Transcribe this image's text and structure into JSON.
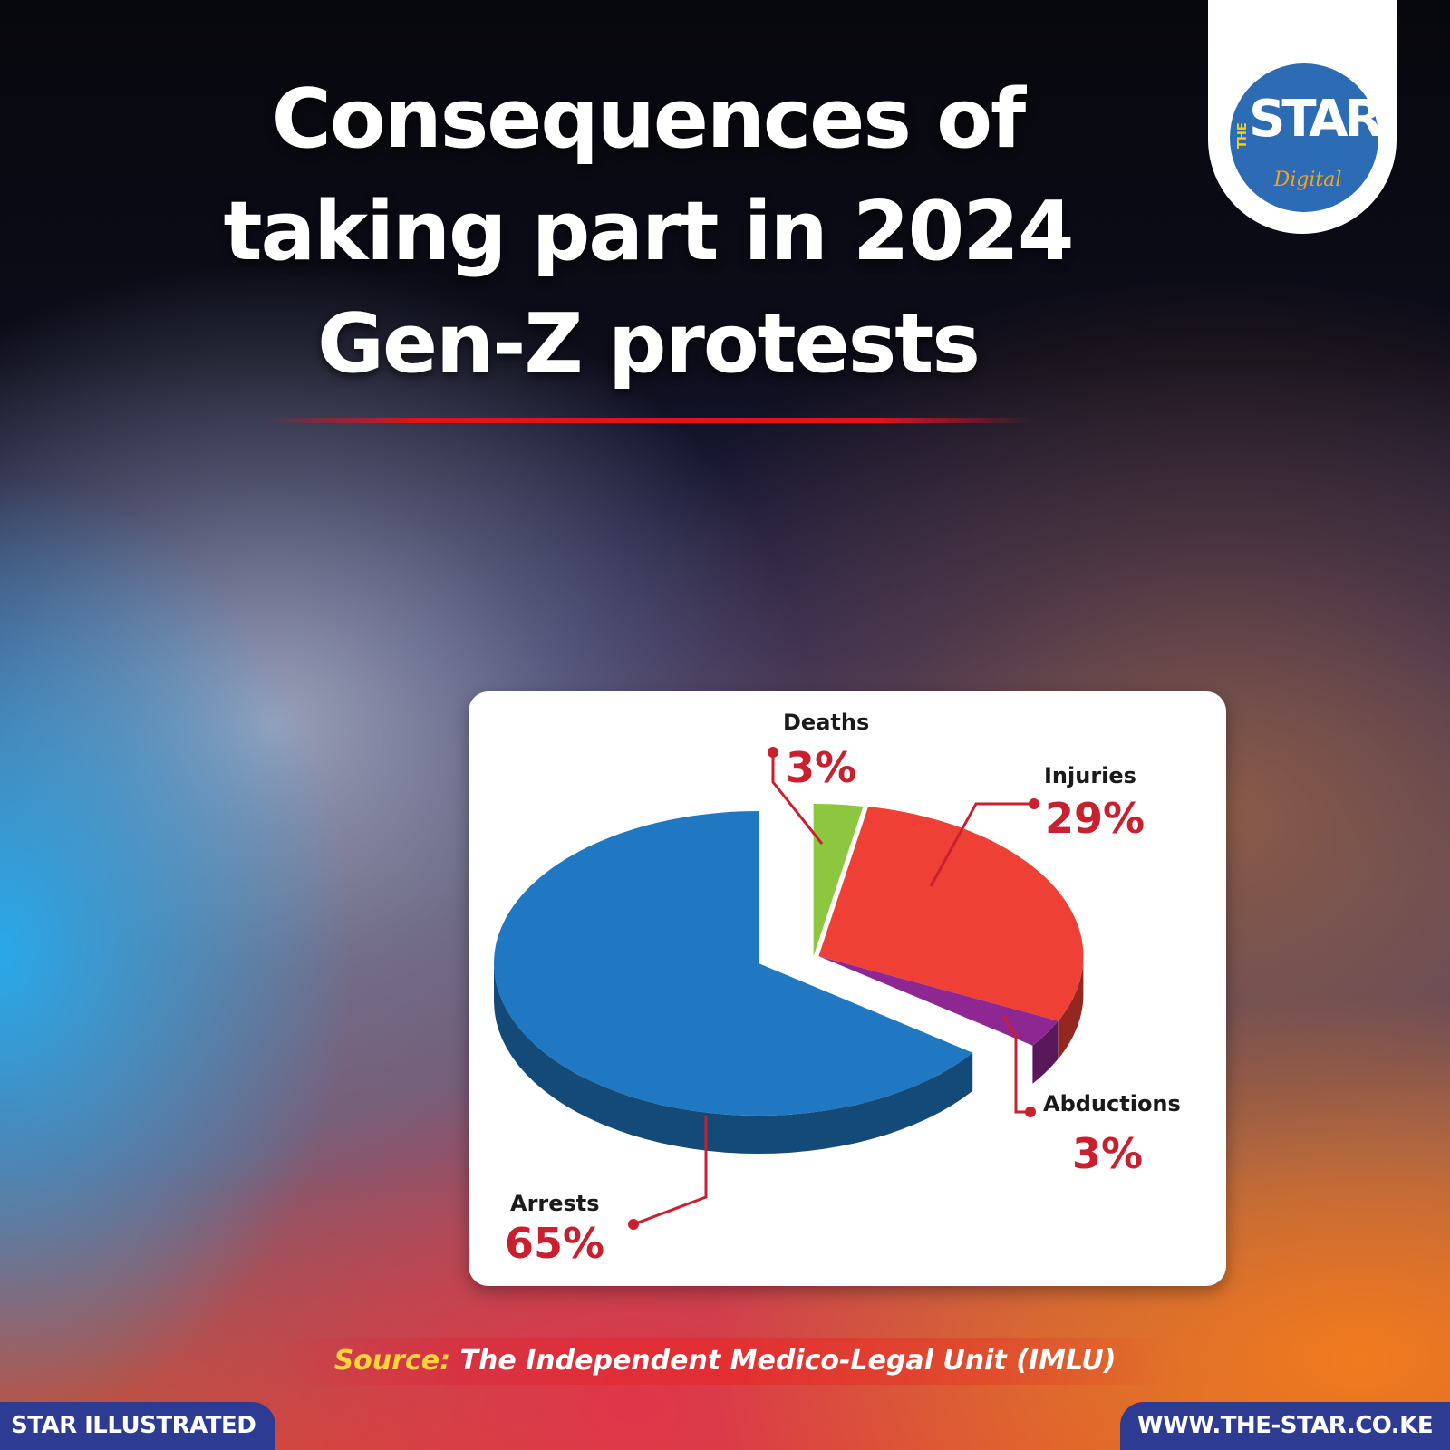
{
  "title_lines": [
    "Consequences of",
    "taking part in 2024",
    "Gen-Z protests"
  ],
  "logo": {
    "the": "THE",
    "star": "STAR",
    "digital": "Digital"
  },
  "source": {
    "label": "Source:",
    "text": "The Independent Medico-Legal Unit (IMLU)"
  },
  "footer": {
    "left": "STAR ILLUSTRATED",
    "right": "WWW.THE-STAR.CO.KE"
  },
  "colors": {
    "arrests": "#1f78c1",
    "injuries": "#ee4035",
    "abductions": "#8e2791",
    "deaths": "#8dc63f",
    "value_text": "#c8202f",
    "footer_bg": "#2d3b93"
  },
  "chart_data": {
    "type": "pie",
    "title": "Consequences of taking part in 2024 Gen-Z protests",
    "categories": [
      "Deaths",
      "Injuries",
      "Abductions",
      "Arrests"
    ],
    "values": [
      3,
      29,
      3,
      65
    ],
    "value_labels": [
      "3%",
      "29%",
      "3%",
      "65%"
    ],
    "unit": "%",
    "style": "3D exploded pie"
  }
}
